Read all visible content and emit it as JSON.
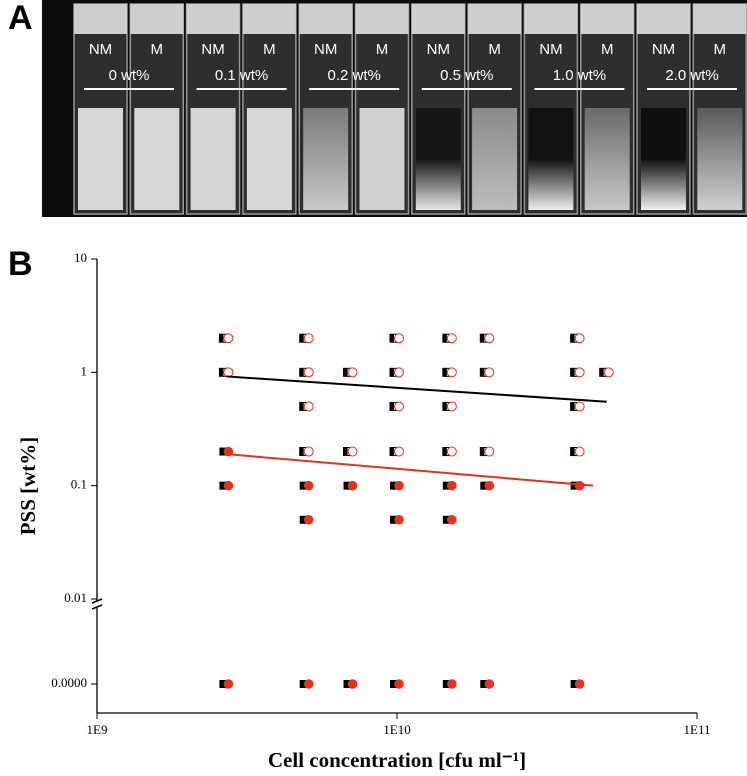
{
  "panel_a": {
    "label": "A",
    "pairs": [
      {
        "nm": "NM",
        "m": "M",
        "concentration": "0 wt%"
      },
      {
        "nm": "NM",
        "m": "M",
        "concentration": "0.1 wt%"
      },
      {
        "nm": "NM",
        "m": "M",
        "concentration": "0.2 wt%"
      },
      {
        "nm": "NM",
        "m": "M",
        "concentration": "0.5 wt%"
      },
      {
        "nm": "NM",
        "m": "M",
        "concentration": "1.0 wt%"
      },
      {
        "nm": "NM",
        "m": "M",
        "concentration": "2.0 wt%"
      }
    ]
  },
  "chart_data": {
    "type": "scatter",
    "panel_label": "B",
    "x_label": "Cell concentration [cfu ml⁻¹]",
    "y_label": "PSS [wt%]",
    "x_log": true,
    "y_log": true,
    "y_axis_break": true,
    "xlim": [
      1000000000,
      100000000000
    ],
    "xticks": [
      {
        "value": 1000000000,
        "label": "1E9"
      },
      {
        "value": 10000000000,
        "label": "1E10"
      },
      {
        "value": 100000000000,
        "label": "1E11"
      }
    ],
    "ylim": [
      0.01,
      10
    ],
    "yticks": [
      10,
      1,
      0.1,
      0.01,
      {
        "value": 0,
        "label": "0.0000"
      }
    ],
    "series": [
      {
        "marker": "open",
        "color": "#e8301f",
        "x": [
          2700000000,
          2700000000,
          5000000000,
          5000000000,
          5000000000,
          5000000000,
          7000000000,
          7000000000,
          10000000000,
          10000000000,
          10000000000,
          10000000000,
          15000000000,
          15000000000,
          15000000000,
          15000000000,
          20000000000,
          20000000000,
          20000000000,
          40000000000,
          40000000000,
          40000000000,
          40000000000,
          50000000000
        ],
        "values": [
          2,
          1,
          2,
          1,
          0.5,
          0.2,
          1,
          0.2,
          2,
          1,
          0.5,
          0.2,
          2,
          1,
          0.5,
          0.2,
          2,
          1,
          0.2,
          2,
          1,
          0.5,
          0.2,
          1
        ]
      },
      {
        "marker": "filled",
        "color": "#e8301f",
        "x": [
          2700000000,
          2700000000,
          2700000000,
          5000000000,
          5000000000,
          5000000000,
          7000000000,
          7000000000,
          10000000000,
          10000000000,
          10000000000,
          15000000000,
          15000000000,
          15000000000,
          20000000000,
          20000000000,
          40000000000,
          40000000000
        ],
        "values": [
          0.2,
          0.1,
          0,
          0.1,
          0.05,
          0,
          0.1,
          0,
          0.1,
          0.05,
          0,
          0.1,
          0.05,
          0,
          0.1,
          0,
          0.1,
          0
        ]
      },
      {
        "type": "line",
        "color": "#000000",
        "x": [
          2700000000,
          50000000000
        ],
        "values": [
          0.92,
          0.55
        ]
      },
      {
        "type": "line",
        "color": "#e8301f",
        "x": [
          2700000000,
          45000000000
        ],
        "values": [
          0.19,
          0.1
        ]
      }
    ]
  }
}
